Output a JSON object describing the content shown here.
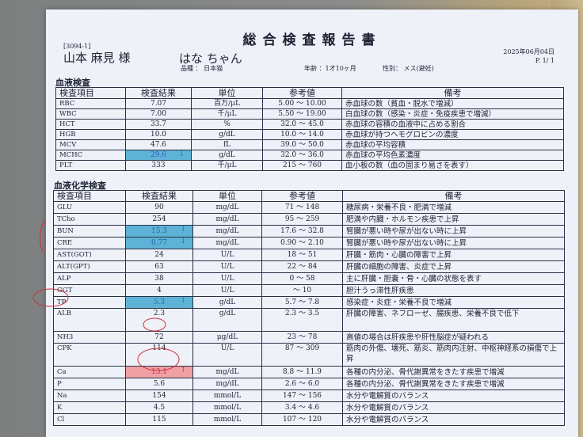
{
  "header": {
    "title": "総合検査報告書",
    "code": "[3094-1]",
    "owner": "山本 麻見 様",
    "pet": "はな ちゃん",
    "breed": "品種 ： 日本猫",
    "age": "年齢 ：1才10ヶ月",
    "sex": "性別： メス(避妊)",
    "date": "2025年06月04日",
    "page": "P.   1/   1"
  },
  "columns": [
    "検査項目",
    "検査結果",
    "単位",
    "参考値",
    "備考"
  ],
  "colors": {
    "low": "#5db3d6",
    "high": "#f0a0a4",
    "pen": "#d0303c"
  },
  "blood": {
    "title": "血液検査",
    "rows": [
      {
        "item": "RBC",
        "result": "7.07",
        "unit": "百万/μL",
        "range": "5.00 ～ 10.00",
        "note": "赤血球の数（貧血・脱水で増減）"
      },
      {
        "item": "WBC",
        "result": "7.00",
        "unit": "千/μL",
        "range": "5.50 ～ 19.00",
        "note": "白血球の数（感染・炎症・免疫疾患で増減）"
      },
      {
        "item": "HCT",
        "result": "33.7",
        "unit": "%",
        "range": "32.0 ～ 45.0",
        "note": "赤血球の容積の血液中に占める割合"
      },
      {
        "item": "HGB",
        "result": "10.0",
        "unit": "g/dL",
        "range": "10.0 ～ 14.0",
        "note": "赤血球が持つヘモグロビンの濃度"
      },
      {
        "item": "MCV",
        "result": "47.6",
        "unit": "fL",
        "range": "39.0 ～ 50.0",
        "note": "赤血球の平均容積"
      },
      {
        "item": "MCHC",
        "result": "29.6",
        "flag": "↓",
        "status": "low",
        "unit": "g/dL",
        "range": "32.0 ～ 36.0",
        "note": "赤血球の平均色素濃度"
      },
      {
        "item": "PLT",
        "result": "333",
        "unit": "千/μL",
        "range": "215 ～ 760",
        "note": "血小板の数（血の固まり易さを表す）"
      }
    ]
  },
  "chem": {
    "title": "血液化学検査",
    "rows": [
      {
        "item": "GLU",
        "result": "90",
        "unit": "mg/dL",
        "range": "71 ～ 148",
        "note": "糖尿病・栄養不良・肥満で増減"
      },
      {
        "item": "TCho",
        "result": "254",
        "unit": "mg/dL",
        "range": "95 ～ 259",
        "note": "肥満や内臓・ホルモン疾患で上昇"
      },
      {
        "item": "BUN",
        "result": "15.3",
        "flag": "↓",
        "status": "low",
        "unit": "mg/dL",
        "range": "17.6 ～ 32.8",
        "note": "腎臓が悪い時や尿が出ない時に上昇"
      },
      {
        "item": "CRE",
        "result": "0.77",
        "flag": "↓",
        "status": "low",
        "unit": "mg/dL",
        "range": "0.90 ～ 2.10",
        "note": "腎臓が悪い時や尿が出ない時に上昇"
      },
      {
        "item": "AST(GOT)",
        "result": "24",
        "unit": "U/L",
        "range": "18 ～ 51",
        "note": "肝臓・筋肉・心臓の障害で上昇"
      },
      {
        "item": "ALT(GPT)",
        "result": "63",
        "unit": "U/L",
        "range": "22 ～ 84",
        "note": "肝臓の細胞の障害、炎症で上昇"
      },
      {
        "item": "ALP",
        "result": "38",
        "unit": "U/L",
        "range": "0 ～ 58",
        "note": "主に肝臓・胆嚢・骨・心臓の状態を表す"
      },
      {
        "item": "GGT",
        "result": "4",
        "unit": "U/L",
        "range": "～ 10",
        "note": "胆汁うっ滞性肝疾患"
      },
      {
        "item": "TP",
        "result": "5.3",
        "flag": "↓",
        "status": "low",
        "unit": "g/dL",
        "range": "5.7 ～ 7.8",
        "note": "感染症・炎症・栄養不良で増減"
      },
      {
        "item": "ALB",
        "result": "2.3",
        "unit": "g/dL",
        "range": "2.3 ～ 3.5",
        "note": "肝臓の障害、ネフローゼ、腸疾患、栄養不良で低下",
        "tall": true
      },
      {
        "item": "NH3",
        "result": "72",
        "unit": "μg/dL",
        "range": "23 ～ 78",
        "note": "高値の場合は肝疾患や肝性脳症が疑われる"
      },
      {
        "item": "CPK",
        "result": "114",
        "unit": "U/L",
        "range": "87 ～ 309",
        "note": "筋肉の外傷、壊死、筋炎、筋肉内注射、中枢神経系の損傷で上昇",
        "tall": true
      },
      {
        "item": "Ca",
        "result": "13.1",
        "flag": "↑",
        "status": "high",
        "unit": "mg/dL",
        "range": "8.8 ～ 11.9",
        "note": "各種の内分泌、骨代謝異常をきたす疾患で増減"
      },
      {
        "item": "P",
        "result": "5.6",
        "unit": "mg/dL",
        "range": "2.6 ～ 6.0",
        "note": "各種の内分泌、骨代謝異常をきたす疾患で増減"
      },
      {
        "item": "Na",
        "result": "154",
        "unit": "mmol/L",
        "range": "147 ～ 156",
        "note": "水分や電解質のバランス"
      },
      {
        "item": "K",
        "result": "4.5",
        "unit": "mmol/L",
        "range": "3.4 ～ 4.6",
        "note": "水分や電解質のバランス"
      },
      {
        "item": "Cl",
        "result": "115",
        "unit": "mmol/L",
        "range": "107 ～ 120",
        "note": "水分や電解質のバランス"
      }
    ]
  }
}
